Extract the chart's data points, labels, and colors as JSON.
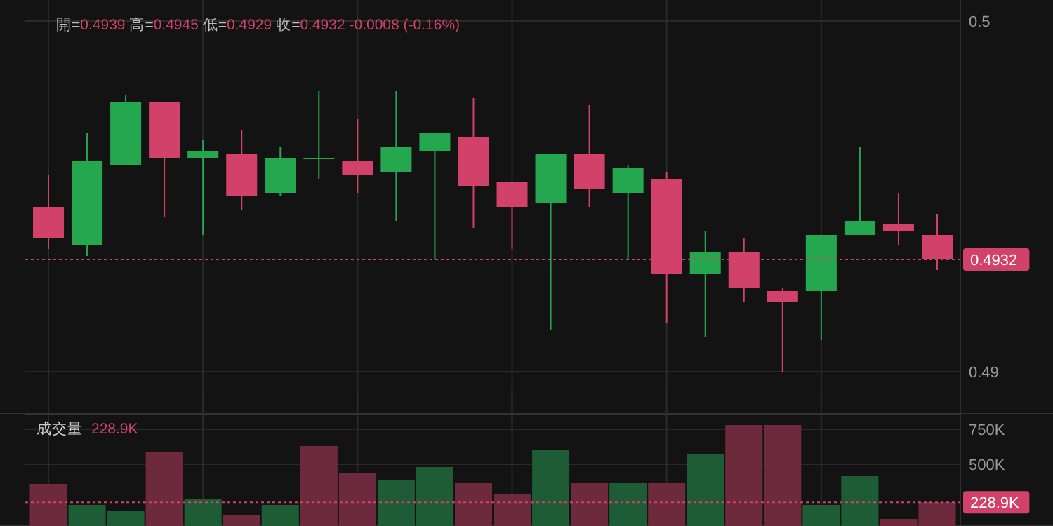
{
  "chart_data": [
    {
      "type": "candlestick",
      "subtitle": "開=0.4939 高=0.4945 低=0.4929 收=0.4932 -0.0008 (-0.16%)",
      "categories": [
        null,
        null,
        null,
        null,
        null,
        null,
        null,
        null,
        null,
        null,
        null,
        null,
        null,
        null,
        null,
        null,
        null,
        null,
        null,
        null,
        null,
        null,
        null,
        null
      ],
      "ohlc": [
        [
          0.4947,
          0.4956,
          0.4935,
          0.4938
        ],
        [
          0.4936,
          0.4968,
          0.4933,
          0.496
        ],
        [
          0.4959,
          0.4979,
          0.4959,
          0.4977
        ],
        [
          0.4977,
          0.4977,
          0.4944,
          0.4961
        ],
        [
          0.4961,
          0.4966,
          0.4939,
          0.4963
        ],
        [
          0.4962,
          0.4969,
          0.4946,
          0.495
        ],
        [
          0.4951,
          0.4964,
          0.495,
          0.4961
        ],
        [
          0.4961,
          0.498,
          0.4955,
          0.4961
        ],
        [
          0.496,
          0.4972,
          0.4951,
          0.4956
        ],
        [
          0.4957,
          0.498,
          0.4943,
          0.4964
        ],
        [
          0.4963,
          0.4968,
          0.4932,
          0.4968
        ],
        [
          0.4967,
          0.4978,
          0.4941,
          0.4953
        ],
        [
          0.4954,
          0.4954,
          0.4935,
          0.4947
        ],
        [
          0.4948,
          0.4962,
          0.4912,
          0.4962
        ],
        [
          0.4962,
          0.4976,
          0.4947,
          0.4952
        ],
        [
          0.4951,
          0.4959,
          0.4932,
          0.4958
        ],
        [
          0.4955,
          0.4957,
          0.4914,
          0.4928
        ],
        [
          0.4928,
          0.494,
          0.491,
          0.4934
        ],
        [
          0.4934,
          0.4938,
          0.492,
          0.4924
        ],
        [
          0.4923,
          0.4924,
          0.49,
          0.492
        ],
        [
          0.4923,
          0.4939,
          0.4909,
          0.4939
        ],
        [
          0.4939,
          0.4964,
          0.4939,
          0.4943
        ],
        [
          0.4942,
          0.4951,
          0.4936,
          0.494
        ],
        [
          0.4939,
          0.4945,
          0.4929,
          0.4932
        ]
      ],
      "colors": [
        "#d1416a",
        "#25a750",
        "#25a750",
        "#d1416a",
        "#25a750",
        "#d1416a",
        "#25a750",
        "#25a750",
        "#d1416a",
        "#25a750",
        "#25a750",
        "#d1416a",
        "#d1416a",
        "#25a750",
        "#d1416a",
        "#25a750",
        "#d1416a",
        "#25a750",
        "#d1416a",
        "#d1416a",
        "#25a750",
        "#25a750",
        "#d1416a",
        "#d1416a"
      ],
      "ylim": [
        0.4888,
        0.5006
      ],
      "yticks": [
        0.5,
        0.49
      ],
      "ref_lines": [
        {
          "axis": "y",
          "value": 0.4932,
          "label": "0.4932",
          "color": "#d1416a",
          "line_style": "dotted"
        }
      ],
      "grid": true,
      "tick_labels": "y"
    },
    {
      "type": "bar",
      "title": "成交量",
      "annotations": [
        "228.9K"
      ],
      "categories": [
        null,
        null,
        null,
        null,
        null,
        null,
        null,
        null,
        null,
        null,
        null,
        null,
        null,
        null,
        null,
        null,
        null,
        null,
        null,
        null,
        null,
        null,
        null,
        null
      ],
      "values": [
        360,
        210,
        170,
        590,
        250,
        140,
        210,
        630,
        440,
        390,
        480,
        370,
        290,
        600,
        370,
        370,
        370,
        570,
        780,
        780,
        210,
        420,
        110,
        228.9
      ],
      "colors": [
        "#6e2a3d",
        "#1d5c34",
        "#1d5c34",
        "#6e2a3d",
        "#1d5c34",
        "#6e2a3d",
        "#1d5c34",
        "#6e2a3d",
        "#6e2a3d",
        "#1d5c34",
        "#1d5c34",
        "#6e2a3d",
        "#6e2a3d",
        "#1d5c34",
        "#6e2a3d",
        "#1d5c34",
        "#6e2a3d",
        "#1d5c34",
        "#6e2a3d",
        "#6e2a3d",
        "#1d5c34",
        "#1d5c34",
        "#6e2a3d",
        "#6e2a3d"
      ],
      "ylim": [
        60,
        860
      ],
      "yticks": [
        {
          "value": 750,
          "label": "750K"
        },
        {
          "value": 500,
          "label": "500K"
        }
      ],
      "ref_lines": [
        {
          "axis": "y",
          "value": 228.9,
          "label": "228.9K",
          "color": "#d1416a",
          "line_style": "dotted"
        }
      ],
      "grid": true,
      "tick_labels": "y"
    }
  ]
}
